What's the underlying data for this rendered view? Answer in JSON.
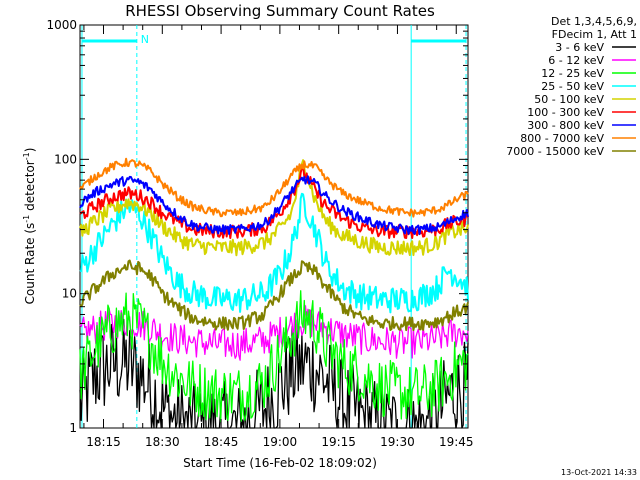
{
  "chart_data": {
    "type": "line",
    "title": "RHESSI Observing Summary Count Rates",
    "xlabel": "Start Time (16-Feb-02 18:09:02)",
    "ylabel": "Count Rate (s",
    "ylabel_sup1": "-1",
    "ylabel_mid": " detector",
    "ylabel_sup2": "-1",
    "ylabel_end": ")",
    "y_scale": "log",
    "ylim": [
      1,
      1000
    ],
    "y_ticks": [
      {
        "value": 1,
        "label": "1"
      },
      {
        "value": 10,
        "label": "10"
      },
      {
        "value": 100,
        "label": "100"
      },
      {
        "value": 1000,
        "label": "1000"
      }
    ],
    "xlim_minutes": [
      1089.0,
      1188.0
    ],
    "x_ticks": [
      {
        "minute": 1095,
        "label": "18:15"
      },
      {
        "minute": 1110,
        "label": "18:30"
      },
      {
        "minute": 1125,
        "label": "18:45"
      },
      {
        "minute": 1140,
        "label": "19:00"
      },
      {
        "minute": 1155,
        "label": "19:15"
      },
      {
        "minute": 1170,
        "label": "19:30"
      },
      {
        "minute": 1185,
        "label": "19:45"
      }
    ],
    "grid": false,
    "legend_position": "top-right",
    "legend_header": [
      "Det 1,3,4,5,6,9,",
      "FDecim 1, Att 1"
    ],
    "series": [
      {
        "name": "3 - 6 keV",
        "color": "#000000",
        "key_minutes": [
          1089,
          1093,
          1097,
          1101,
          1104,
          1107,
          1110,
          1114,
          1118,
          1124,
          1130,
          1136,
          1140,
          1143,
          1146,
          1149,
          1152,
          1156,
          1161,
          1166,
          1172,
          1176,
          1180,
          1183,
          1186,
          1188
        ],
        "values": [
          1.5,
          2.5,
          3.0,
          3.0,
          2.6,
          2.0,
          1.4,
          1.1,
          1.0,
          1.0,
          1.0,
          1.4,
          2.0,
          2.6,
          3.0,
          2.8,
          2.2,
          1.5,
          1.2,
          1.0,
          1.0,
          1.0,
          1.2,
          1.7,
          2.0,
          2.0
        ]
      },
      {
        "name": "6 - 12 keV",
        "color": "#ff00ff",
        "key_minutes": [
          1089,
          1093,
          1097,
          1101,
          1104,
          1107,
          1110,
          1114,
          1118,
          1124,
          1130,
          1136,
          1140,
          1143,
          1146,
          1149,
          1152,
          1156,
          1161,
          1166,
          1172,
          1176,
          1180,
          1183,
          1186,
          1188
        ],
        "values": [
          5.0,
          5.5,
          6.0,
          6.2,
          6.0,
          5.6,
          5.0,
          4.6,
          4.4,
          4.2,
          4.2,
          4.5,
          5.2,
          5.8,
          6.3,
          6.0,
          5.5,
          5.0,
          4.6,
          4.4,
          4.3,
          4.4,
          4.6,
          5.0,
          5.2,
          5.2
        ]
      },
      {
        "name": "12 - 25 keV",
        "color": "#00ff00",
        "key_minutes": [
          1089,
          1093,
          1097,
          1101,
          1104,
          1107,
          1110,
          1114,
          1118,
          1124,
          1130,
          1136,
          1140,
          1143,
          1146,
          1149,
          1152,
          1156,
          1161,
          1166,
          1172,
          1176,
          1180,
          1183,
          1186,
          1188
        ],
        "values": [
          2.5,
          4.0,
          5.5,
          6.5,
          6.0,
          4.5,
          3.2,
          2.4,
          2.0,
          1.8,
          1.8,
          2.2,
          3.5,
          5.0,
          7.0,
          6.0,
          4.0,
          3.0,
          2.5,
          2.0,
          1.8,
          1.8,
          2.0,
          2.4,
          3.0,
          3.0
        ]
      },
      {
        "name": "25 - 50 keV",
        "color": "#00ffff",
        "key_minutes": [
          1089,
          1093,
          1097,
          1101,
          1104,
          1107,
          1110,
          1114,
          1118,
          1124,
          1130,
          1136,
          1140,
          1143,
          1146,
          1149,
          1152,
          1156,
          1161,
          1166,
          1172,
          1176,
          1180,
          1183,
          1186,
          1188
        ],
        "values": [
          15,
          22,
          32,
          45,
          40,
          28,
          18,
          12,
          10,
          9,
          9,
          10,
          14,
          22,
          50,
          30,
          16,
          11,
          9.5,
          9,
          9,
          9.5,
          11,
          15,
          13,
          11
        ]
      },
      {
        "name": "50 - 100 keV",
        "color": "#d4d400",
        "key_minutes": [
          1089,
          1093,
          1097,
          1101,
          1104,
          1107,
          1110,
          1114,
          1118,
          1124,
          1130,
          1136,
          1140,
          1143,
          1146,
          1149,
          1152,
          1156,
          1161,
          1166,
          1172,
          1176,
          1180,
          1183,
          1186,
          1188
        ],
        "values": [
          28,
          35,
          42,
          48,
          46,
          40,
          32,
          26,
          23,
          22,
          22,
          24,
          30,
          40,
          95,
          50,
          34,
          27,
          24,
          22,
          22,
          22,
          24,
          28,
          30,
          30
        ]
      },
      {
        "name": "100 - 300 keV",
        "color": "#ff0000",
        "key_minutes": [
          1089,
          1093,
          1097,
          1101,
          1104,
          1107,
          1110,
          1114,
          1118,
          1124,
          1130,
          1136,
          1140,
          1143,
          1146,
          1149,
          1152,
          1156,
          1161,
          1166,
          1172,
          1176,
          1180,
          1183,
          1186,
          1188
        ],
        "values": [
          38,
          45,
          52,
          56,
          54,
          48,
          40,
          34,
          30,
          29,
          29,
          31,
          40,
          55,
          82,
          58,
          44,
          36,
          31,
          29,
          29,
          29,
          30,
          33,
          35,
          36
        ]
      },
      {
        "name": "300 - 800 keV",
        "color": "#0000ff",
        "key_minutes": [
          1089,
          1093,
          1097,
          1101,
          1104,
          1107,
          1110,
          1114,
          1118,
          1124,
          1130,
          1136,
          1140,
          1143,
          1146,
          1149,
          1152,
          1156,
          1161,
          1166,
          1172,
          1176,
          1180,
          1183,
          1186,
          1188
        ],
        "values": [
          47,
          57,
          65,
          70,
          68,
          60,
          48,
          38,
          32,
          30,
          30,
          33,
          44,
          58,
          72,
          66,
          52,
          42,
          36,
          32,
          30,
          30,
          31,
          34,
          38,
          40
        ]
      },
      {
        "name": "800 - 7000 keV",
        "color": "#ff8000",
        "key_minutes": [
          1089,
          1093,
          1097,
          1101,
          1104,
          1107,
          1110,
          1114,
          1118,
          1124,
          1130,
          1136,
          1140,
          1143,
          1146,
          1149,
          1152,
          1156,
          1161,
          1166,
          1172,
          1176,
          1180,
          1183,
          1186,
          1188
        ],
        "values": [
          60,
          75,
          88,
          95,
          92,
          82,
          66,
          52,
          44,
          40,
          40,
          44,
          58,
          76,
          92,
          88,
          70,
          56,
          48,
          43,
          40,
          40,
          42,
          46,
          52,
          55
        ]
      },
      {
        "name": "7000 - 15000 keV",
        "color": "#808000",
        "key_minutes": [
          1089,
          1093,
          1097,
          1101,
          1104,
          1107,
          1110,
          1114,
          1118,
          1124,
          1130,
          1136,
          1140,
          1143,
          1146,
          1149,
          1152,
          1156,
          1161,
          1166,
          1172,
          1176,
          1180,
          1183,
          1186,
          1188
        ],
        "values": [
          8.5,
          11,
          14,
          16,
          15.5,
          13.5,
          10,
          7.8,
          6.5,
          6,
          6,
          7,
          10,
          13,
          16,
          14.5,
          11,
          8,
          6.5,
          6,
          6,
          6,
          6.2,
          6.8,
          7.5,
          8
        ]
      }
    ],
    "annotations": {
      "n_label": "N",
      "night_segments_minutes": [
        [
          1089.5,
          1103.5
        ],
        [
          1173.5,
          1187.5
        ]
      ],
      "night_lines_solid_minutes": [
        1089.5,
        1173.5
      ],
      "night_lines_dashed_minutes": [
        1103.5,
        1187.5
      ],
      "annotation_color": "#00ffff"
    }
  },
  "footer": {
    "timestamp": "13-Oct-2021 14:33"
  }
}
